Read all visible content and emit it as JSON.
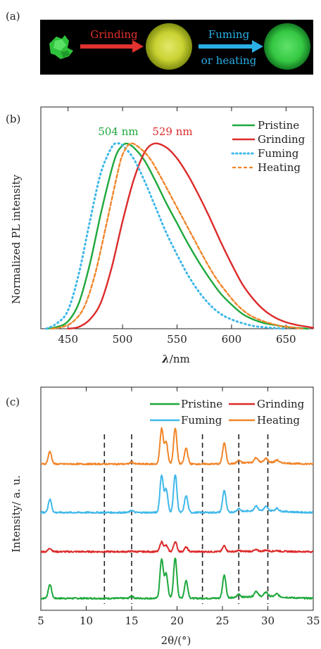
{
  "panel_a": {
    "label": "(a)",
    "step1": "Grinding",
    "step2_line1": "Fuming",
    "step2_line2": "or heating",
    "colors": {
      "background": "#000000",
      "grind_arrow": "#e0322e",
      "fume_arrow": "#2aaee6",
      "pristine_glow": "#3bd14a",
      "ground_glow": "#d6df3a"
    }
  },
  "chart_data": [
    {
      "panel": "(b)",
      "type": "line",
      "xlabel_symbol": "λ",
      "xlabel_unit": "/nm",
      "ylabel": "Normalized  PL  intensity",
      "xlim": [
        425,
        675
      ],
      "ylim": [
        0,
        1.0
      ],
      "xticks": [
        450,
        500,
        550,
        600,
        650
      ],
      "grid": false,
      "legend_position": "top-right",
      "annotations": [
        {
          "text": "504 nm",
          "color": "#1ea83c"
        },
        {
          "text": "529 nm",
          "color": "#dc2a2a"
        }
      ],
      "series": [
        {
          "name": "Pristine",
          "color": "#1ea83c",
          "style": "solid",
          "x": [
            430,
            440,
            450,
            460,
            470,
            480,
            490,
            495,
            500,
            504,
            510,
            520,
            530,
            540,
            550,
            560,
            570,
            580,
            590,
            600,
            610,
            620,
            630,
            640,
            650,
            660,
            670
          ],
          "y": [
            0.0,
            0.01,
            0.04,
            0.14,
            0.35,
            0.62,
            0.86,
            0.95,
            0.99,
            1.0,
            0.98,
            0.91,
            0.8,
            0.68,
            0.57,
            0.46,
            0.36,
            0.27,
            0.19,
            0.13,
            0.08,
            0.05,
            0.03,
            0.02,
            0.01,
            0.005,
            0.0
          ]
        },
        {
          "name": "Grinding",
          "color": "#dc2a2a",
          "style": "solid",
          "x": [
            450,
            460,
            470,
            480,
            490,
            500,
            510,
            520,
            529,
            540,
            550,
            560,
            570,
            580,
            590,
            600,
            610,
            620,
            630,
            640,
            650,
            660,
            670,
            675
          ],
          "y": [
            0.0,
            0.01,
            0.05,
            0.14,
            0.33,
            0.58,
            0.8,
            0.95,
            1.0,
            0.98,
            0.92,
            0.83,
            0.72,
            0.6,
            0.47,
            0.35,
            0.24,
            0.16,
            0.1,
            0.06,
            0.035,
            0.02,
            0.01,
            0.005
          ]
        },
        {
          "name": "Fuming",
          "color": "#3fb8ea",
          "style": "dotted",
          "x": [
            430,
            440,
            450,
            460,
            470,
            480,
            490,
            495,
            500,
            510,
            520,
            530,
            540,
            550,
            560,
            570,
            580,
            590,
            600,
            610,
            620,
            630,
            640,
            650
          ],
          "y": [
            0.0,
            0.03,
            0.1,
            0.3,
            0.58,
            0.84,
            0.98,
            1.0,
            0.99,
            0.92,
            0.8,
            0.66,
            0.52,
            0.4,
            0.29,
            0.2,
            0.13,
            0.08,
            0.05,
            0.03,
            0.015,
            0.008,
            0.004,
            0.0
          ]
        },
        {
          "name": "Heating",
          "color": "#f0852a",
          "style": "dashed",
          "x": [
            435,
            445,
            455,
            465,
            475,
            485,
            495,
            500,
            507,
            515,
            525,
            535,
            545,
            555,
            565,
            575,
            585,
            595,
            605,
            615,
            625,
            635,
            645,
            655,
            665
          ],
          "y": [
            0.0,
            0.01,
            0.04,
            0.12,
            0.3,
            0.56,
            0.83,
            0.94,
            1.0,
            0.98,
            0.92,
            0.82,
            0.71,
            0.6,
            0.49,
            0.38,
            0.28,
            0.2,
            0.13,
            0.08,
            0.05,
            0.03,
            0.015,
            0.008,
            0.0
          ]
        }
      ]
    },
    {
      "panel": "(c)",
      "type": "line",
      "xlabel": "2θ/(°)",
      "ylabel": "Intensity/ a. u.",
      "xlim": [
        5,
        35
      ],
      "xticks": [
        5,
        10,
        15,
        20,
        25,
        30,
        35
      ],
      "grid": false,
      "legend_position": "top",
      "reference_lines_x": [
        12.0,
        15.0,
        22.8,
        26.8,
        30.0
      ],
      "series": [
        {
          "name": "Pristine",
          "color": "#1ea83c",
          "offset": 0.0,
          "scale": 1.0
        },
        {
          "name": "Grinding",
          "color": "#dc2a2a",
          "offset": 2.5,
          "scale": 0.25
        },
        {
          "name": "Fuming",
          "color": "#3fb8ea",
          "offset": 4.6,
          "scale": 0.95
        },
        {
          "name": "Heating",
          "color": "#f0852a",
          "offset": 7.2,
          "scale": 0.9
        }
      ],
      "peaks": [
        {
          "x": 6.0,
          "height": 0.75
        },
        {
          "x": 15.0,
          "height": 0.12
        },
        {
          "x": 18.3,
          "height": 2.1
        },
        {
          "x": 18.8,
          "height": 1.3
        },
        {
          "x": 19.8,
          "height": 2.15
        },
        {
          "x": 21.0,
          "height": 0.95
        },
        {
          "x": 25.2,
          "height": 1.25
        },
        {
          "x": 26.8,
          "height": 0.18
        },
        {
          "x": 28.7,
          "height": 0.28
        },
        {
          "x": 29.8,
          "height": 0.22
        },
        {
          "x": 31.0,
          "height": 0.15
        }
      ]
    }
  ]
}
